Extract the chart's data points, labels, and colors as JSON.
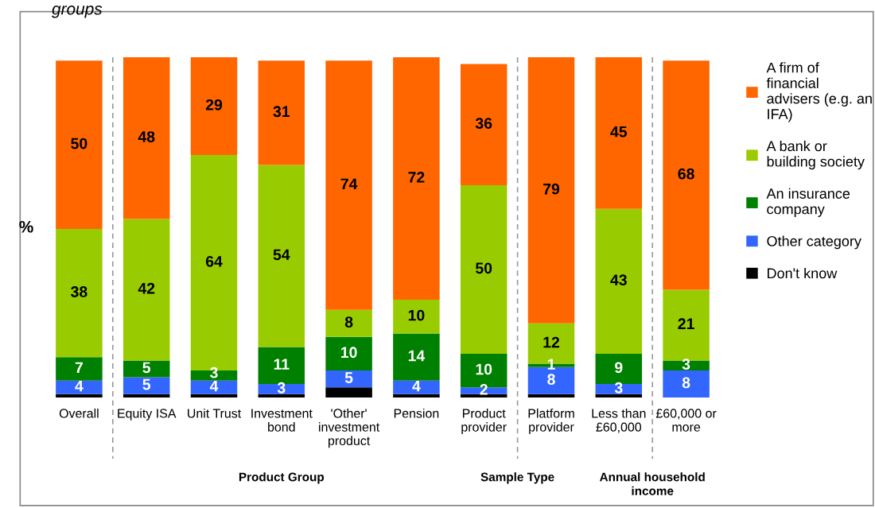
{
  "chart_data": {
    "type": "bar",
    "stacked": true,
    "title": "groups",
    "ylabel": "%",
    "categories": [
      "Overall",
      "Equity ISA",
      "Unit Trust",
      "Investment\nbond",
      "'Other'\ninvestment\nproduct",
      "Pension",
      "Product\nprovider",
      "Platform\nprovider",
      "Less than\n£60,000",
      "£60,000 or\nmore"
    ],
    "series": [
      {
        "name": "Don't know",
        "color": "#000000",
        "values": [
          1,
          1,
          1,
          1,
          3,
          1,
          1,
          1,
          1,
          0
        ],
        "value_labels": [
          null,
          null,
          null,
          null,
          null,
          null,
          null,
          null,
          null,
          null
        ]
      },
      {
        "name": "Other category",
        "color": "#3366ff",
        "values": [
          4,
          5,
          4,
          3,
          5,
          4,
          2,
          8,
          3,
          8
        ],
        "value_labels": [
          "4",
          "5",
          "4",
          "3",
          "5",
          "4",
          "2",
          "8",
          "3",
          "8"
        ]
      },
      {
        "name": "An insurance\ncompany",
        "color": "#008000",
        "values": [
          7,
          5,
          3,
          11,
          10,
          14,
          10,
          1,
          9,
          3
        ],
        "value_labels": [
          "7",
          "5",
          "3",
          "11",
          "10",
          "14",
          "10",
          "1",
          "9",
          "3"
        ]
      },
      {
        "name": "A bank or\nbuilding society",
        "color": "#99cc00",
        "values": [
          38,
          42,
          64,
          54,
          8,
          10,
          50,
          12,
          43,
          21
        ],
        "value_labels": [
          "38",
          "42",
          "64",
          "54",
          "8",
          "10",
          "50",
          "12",
          "43",
          "21"
        ]
      },
      {
        "name": "A firm of\nfinancial\nadvisers (e.g. an\nIFA)",
        "color": "#ff6600",
        "values": [
          50,
          48,
          29,
          31,
          74,
          72,
          36,
          79,
          45,
          68
        ],
        "value_labels": [
          "50",
          "48",
          "29",
          "31",
          "74",
          "72",
          "36",
          "79",
          "45",
          "68"
        ]
      }
    ],
    "annotations": [
      "Product Group",
      "Sample Type",
      "Annual household\nincome"
    ],
    "legend": "right",
    "tick_labels": "x",
    "grid": false
  }
}
